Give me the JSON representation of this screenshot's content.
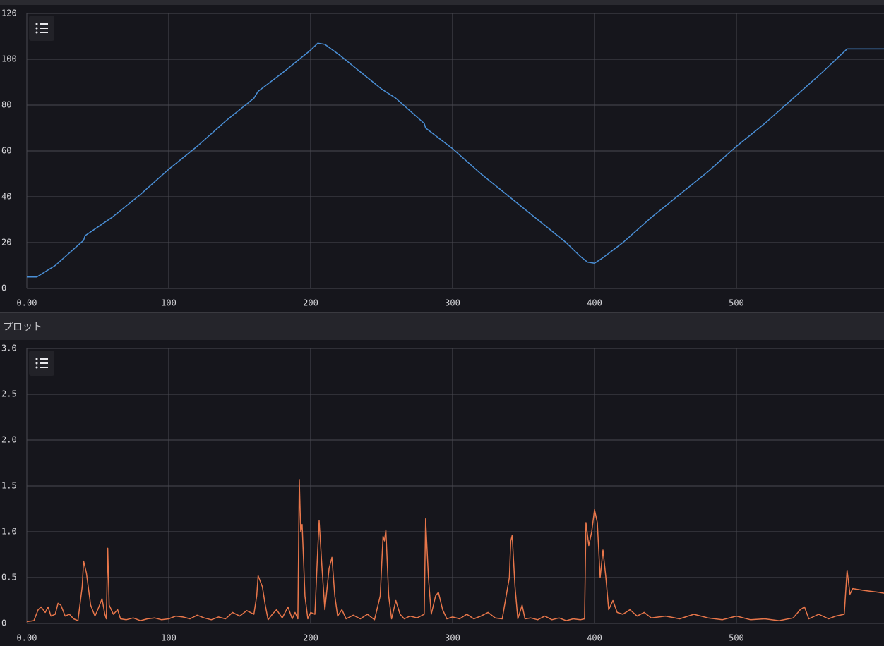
{
  "panel_title": "プロット",
  "chart_data": [
    {
      "type": "line",
      "color": "#4a8fd6",
      "grid": true,
      "xlim": [
        0,
        604
      ],
      "ylim": [
        0,
        120
      ],
      "xticks": [
        {
          "value": 0,
          "label": "0.00"
        },
        100,
        200,
        300,
        400,
        500
      ],
      "yticks": [
        0,
        20,
        40,
        60,
        80,
        100,
        120
      ],
      "x": [
        0,
        7,
        20,
        40,
        41,
        60,
        80,
        100,
        120,
        140,
        160,
        163,
        180,
        190,
        200,
        205,
        210,
        220,
        240,
        250,
        260,
        280,
        281,
        300,
        320,
        340,
        360,
        380,
        390,
        395,
        400,
        405,
        420,
        440,
        460,
        480,
        500,
        520,
        540,
        560,
        578,
        604
      ],
      "values": [
        5,
        5,
        10,
        21,
        23,
        31,
        41,
        52,
        62,
        73,
        83,
        86,
        94,
        99,
        104,
        107,
        106.5,
        102,
        92,
        87,
        83,
        72,
        70,
        61,
        50,
        40,
        30,
        20,
        14,
        11.5,
        11,
        13,
        20,
        31,
        41,
        51,
        62,
        72,
        83,
        94,
        104.5,
        104.5
      ]
    },
    {
      "type": "line",
      "color": "#e8764a",
      "grid": true,
      "xlim": [
        0,
        604
      ],
      "ylim": [
        0,
        3
      ],
      "xticks": [
        {
          "value": 0,
          "label": "0.00"
        },
        100,
        200,
        300,
        400,
        500
      ],
      "yticks": [
        0,
        0.5,
        {
          "value": 1,
          "label": "1.0"
        },
        1.5,
        {
          "value": 2,
          "label": "2.0"
        },
        2.5,
        {
          "value": 3,
          "label": "3.0"
        }
      ],
      "x": [
        0,
        5,
        8,
        10,
        13,
        15,
        17,
        20,
        22,
        24,
        27,
        30,
        33,
        36,
        39,
        40,
        42,
        45,
        48,
        50,
        53,
        55,
        56,
        57,
        58,
        61,
        64,
        66,
        70,
        75,
        80,
        85,
        90,
        95,
        100,
        105,
        110,
        115,
        120,
        125,
        130,
        135,
        140,
        145,
        150,
        155,
        160,
        162,
        163,
        166,
        168,
        170,
        173,
        176,
        180,
        184,
        187,
        189,
        191,
        192,
        193,
        194,
        195,
        196,
        198,
        200,
        203,
        205,
        206,
        208,
        210,
        213,
        215,
        217,
        219,
        222,
        225,
        230,
        235,
        240,
        245,
        249,
        251,
        252,
        253,
        255,
        257,
        260,
        263,
        266,
        270,
        275,
        280,
        281,
        283,
        285,
        288,
        290,
        293,
        296,
        300,
        305,
        310,
        315,
        320,
        325,
        330,
        335,
        340,
        341,
        342,
        344,
        346,
        349,
        351,
        355,
        360,
        365,
        370,
        375,
        380,
        385,
        390,
        393,
        394,
        396,
        398,
        400,
        402,
        404,
        406,
        408,
        410,
        413,
        416,
        420,
        425,
        430,
        435,
        440,
        450,
        460,
        470,
        480,
        490,
        500,
        510,
        520,
        530,
        540,
        545,
        548,
        551,
        558,
        565,
        570,
        576,
        578,
        580,
        582,
        590,
        600,
        604
      ],
      "values": [
        0.02,
        0.03,
        0.15,
        0.18,
        0.12,
        0.18,
        0.08,
        0.1,
        0.22,
        0.2,
        0.08,
        0.1,
        0.05,
        0.03,
        0.4,
        0.68,
        0.55,
        0.2,
        0.08,
        0.15,
        0.27,
        0.1,
        0.05,
        0.82,
        0.2,
        0.1,
        0.15,
        0.05,
        0.04,
        0.06,
        0.03,
        0.05,
        0.06,
        0.04,
        0.05,
        0.08,
        0.07,
        0.05,
        0.09,
        0.06,
        0.04,
        0.07,
        0.05,
        0.12,
        0.08,
        0.14,
        0.1,
        0.3,
        0.52,
        0.4,
        0.2,
        0.04,
        0.1,
        0.15,
        0.06,
        0.18,
        0.05,
        0.12,
        0.05,
        1.57,
        1.0,
        1.08,
        0.7,
        0.3,
        0.05,
        0.12,
        0.1,
        0.8,
        1.12,
        0.6,
        0.15,
        0.6,
        0.72,
        0.3,
        0.08,
        0.15,
        0.05,
        0.09,
        0.05,
        0.1,
        0.04,
        0.3,
        0.95,
        0.9,
        1.02,
        0.3,
        0.05,
        0.25,
        0.1,
        0.05,
        0.08,
        0.06,
        0.1,
        1.14,
        0.5,
        0.1,
        0.3,
        0.34,
        0.15,
        0.05,
        0.07,
        0.05,
        0.1,
        0.05,
        0.08,
        0.12,
        0.06,
        0.05,
        0.5,
        0.9,
        0.96,
        0.4,
        0.05,
        0.2,
        0.05,
        0.06,
        0.04,
        0.08,
        0.04,
        0.06,
        0.03,
        0.05,
        0.04,
        0.05,
        1.1,
        0.85,
        1.0,
        1.24,
        1.1,
        0.5,
        0.8,
        0.5,
        0.15,
        0.25,
        0.12,
        0.1,
        0.15,
        0.08,
        0.12,
        0.06,
        0.08,
        0.05,
        0.1,
        0.06,
        0.04,
        0.08,
        0.04,
        0.05,
        0.03,
        0.06,
        0.15,
        0.18,
        0.05,
        0.1,
        0.05,
        0.08,
        0.1,
        0.58,
        0.32,
        0.38,
        0.36,
        0.34,
        0.33
      ]
    }
  ]
}
